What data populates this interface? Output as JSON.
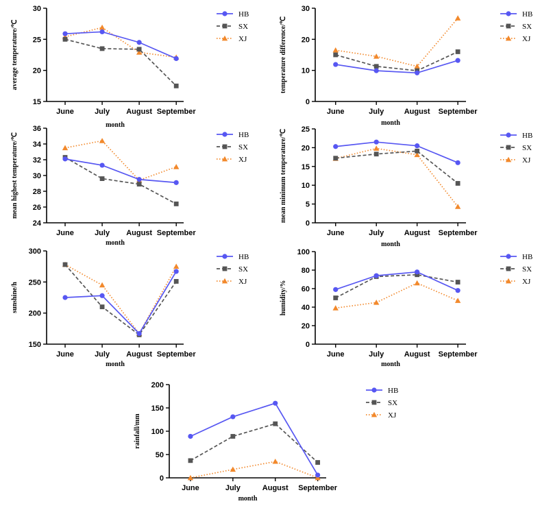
{
  "chart_data": [
    {
      "type": "line",
      "id": "avg-temp",
      "title": "",
      "xlabel": "month",
      "ylabel": "average temperature/℃",
      "categories": [
        "June",
        "July",
        "August",
        "September"
      ],
      "ylim": [
        15,
        30
      ],
      "yticks": [
        15,
        20,
        25,
        30
      ],
      "legend": "top-right",
      "series": [
        {
          "name": "HB",
          "values": [
            25.9,
            26.2,
            24.5,
            21.9
          ]
        },
        {
          "name": "SX",
          "values": [
            25.0,
            23.5,
            23.4,
            17.5
          ]
        },
        {
          "name": "XJ",
          "values": [
            25.4,
            26.9,
            22.9,
            22.1
          ]
        }
      ]
    },
    {
      "type": "line",
      "id": "temp-diff",
      "title": "",
      "xlabel": "month",
      "ylabel": "temperature difference/℃",
      "categories": [
        "June",
        "July",
        "August",
        "September"
      ],
      "ylim": [
        0,
        30
      ],
      "yticks": [
        0,
        10,
        20,
        30
      ],
      "legend": "top-right",
      "series": [
        {
          "name": "HB",
          "values": [
            11.9,
            9.9,
            9.2,
            13.2
          ]
        },
        {
          "name": "SX",
          "values": [
            15.0,
            11.3,
            9.9,
            16.0
          ]
        },
        {
          "name": "XJ",
          "values": [
            16.5,
            14.5,
            11.3,
            26.8
          ]
        }
      ]
    },
    {
      "type": "line",
      "id": "mean-highest",
      "title": "",
      "xlabel": "month",
      "ylabel": "mean highest temperature/℃",
      "categories": [
        "June",
        "July",
        "August",
        "September"
      ],
      "ylim": [
        24,
        36
      ],
      "yticks": [
        24,
        26,
        28,
        30,
        32,
        34,
        36
      ],
      "legend": "top-right",
      "series": [
        {
          "name": "HB",
          "values": [
            32.1,
            31.3,
            29.5,
            29.1
          ]
        },
        {
          "name": "SX",
          "values": [
            32.3,
            29.6,
            28.9,
            26.4
          ]
        },
        {
          "name": "XJ",
          "values": [
            33.5,
            34.4,
            29.4,
            31.1
          ]
        }
      ]
    },
    {
      "type": "line",
      "id": "mean-minimum",
      "title": "",
      "xlabel": "month",
      "ylabel": "mean minimum temperature/℃",
      "categories": [
        "June",
        "July",
        "August",
        "September"
      ],
      "ylim": [
        0,
        25
      ],
      "yticks": [
        0,
        5,
        10,
        15,
        20,
        25
      ],
      "legend": "top-right",
      "series": [
        {
          "name": "HB",
          "values": [
            20.3,
            21.5,
            20.5,
            16.0
          ]
        },
        {
          "name": "SX",
          "values": [
            17.2,
            18.3,
            19.1,
            10.5
          ]
        },
        {
          "name": "XJ",
          "values": [
            17.1,
            19.8,
            18.1,
            4.3
          ]
        }
      ]
    },
    {
      "type": "line",
      "id": "sunshine",
      "title": "",
      "xlabel": "month",
      "ylabel": "sunshine/h",
      "categories": [
        "June",
        "July",
        "August",
        "September"
      ],
      "ylim": [
        150,
        300
      ],
      "yticks": [
        150,
        200,
        250,
        300
      ],
      "legend": "top-right",
      "series": [
        {
          "name": "HB",
          "values": [
            225,
            228,
            167,
            267
          ]
        },
        {
          "name": "SX",
          "values": [
            278,
            210,
            165,
            251
          ]
        },
        {
          "name": "XJ",
          "values": [
            278,
            245,
            167,
            275
          ]
        }
      ]
    },
    {
      "type": "line",
      "id": "humidity",
      "title": "",
      "xlabel": "month",
      "ylabel": "humidity/%",
      "categories": [
        "June",
        "July",
        "August",
        "September"
      ],
      "ylim": [
        0,
        100
      ],
      "yticks": [
        0,
        20,
        40,
        60,
        80,
        100
      ],
      "legend": "top-right",
      "series": [
        {
          "name": "HB",
          "values": [
            59,
            74,
            78,
            58
          ]
        },
        {
          "name": "SX",
          "values": [
            50,
            73,
            75,
            67
          ]
        },
        {
          "name": "XJ",
          "values": [
            39,
            45,
            66,
            47
          ]
        }
      ]
    },
    {
      "type": "line",
      "id": "rainfall",
      "title": "",
      "xlabel": "month",
      "ylabel": "rainfall/mm",
      "categories": [
        "June",
        "July",
        "August",
        "September"
      ],
      "ylim": [
        0,
        200
      ],
      "yticks": [
        0,
        50,
        100,
        150,
        200
      ],
      "legend": "top-right",
      "series": [
        {
          "name": "HB",
          "values": [
            89,
            131,
            160,
            6
          ]
        },
        {
          "name": "SX",
          "values": [
            37,
            89,
            116,
            33
          ]
        },
        {
          "name": "XJ",
          "values": [
            0,
            18,
            35,
            0
          ]
        }
      ]
    }
  ],
  "series_style": {
    "HB": {
      "color": "#5757f2",
      "marker": "circle",
      "dash": "solid"
    },
    "SX": {
      "color": "#555555",
      "marker": "square",
      "dash": "dashed"
    },
    "XJ": {
      "color": "#f2892c",
      "marker": "triangle",
      "dash": "dotted"
    }
  }
}
